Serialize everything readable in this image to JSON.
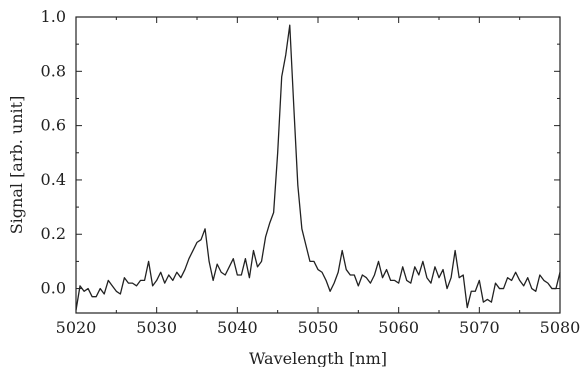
{
  "chart_data": {
    "type": "line",
    "title": "",
    "xlabel": "Wavelength [nm]",
    "ylabel": "Signal [arb. unit]",
    "xlim": [
      5020,
      5080
    ],
    "ylim": [
      -0.09,
      1.0
    ],
    "xticks": [
      5020,
      5030,
      5040,
      5050,
      5060,
      5070,
      5080
    ],
    "xtick_labels": [
      "5020",
      "5030",
      "5040",
      "5050",
      "5060",
      "5070",
      "5080"
    ],
    "yticks": [
      0.0,
      0.2,
      0.4,
      0.6,
      0.8,
      1.0
    ],
    "ytick_labels": [
      "0.0",
      "0.2",
      "0.4",
      "0.6",
      "0.8",
      "1.0"
    ],
    "grid": false,
    "legend": "none",
    "series": [
      {
        "color": "#222222",
        "x": [
          5020.0,
          5020.5,
          5021.0,
          5021.5,
          5022.0,
          5022.5,
          5023.0,
          5023.5,
          5024.0,
          5024.5,
          5025.0,
          5025.5,
          5026.0,
          5026.5,
          5027.0,
          5027.5,
          5028.0,
          5028.5,
          5029.0,
          5029.5,
          5030.0,
          5030.5,
          5031.0,
          5031.5,
          5032.0,
          5032.5,
          5033.0,
          5033.5,
          5034.0,
          5034.5,
          5035.0,
          5035.5,
          5036.0,
          5036.5,
          5037.0,
          5037.5,
          5038.0,
          5038.5,
          5039.0,
          5039.5,
          5040.0,
          5040.5,
          5041.0,
          5041.5,
          5042.0,
          5042.5,
          5043.0,
          5043.5,
          5044.0,
          5044.5,
          5045.0,
          5045.5,
          5046.0,
          5046.5,
          5047.0,
          5047.5,
          5048.0,
          5048.5,
          5049.0,
          5049.5,
          5050.0,
          5050.5,
          5051.0,
          5051.5,
          5052.0,
          5052.5,
          5053.0,
          5053.5,
          5054.0,
          5054.5,
          5055.0,
          5055.5,
          5056.0,
          5056.5,
          5057.0,
          5057.5,
          5058.0,
          5058.5,
          5059.0,
          5059.5,
          5060.0,
          5060.5,
          5061.0,
          5061.5,
          5062.0,
          5062.5,
          5063.0,
          5063.5,
          5064.0,
          5064.5,
          5065.0,
          5065.5,
          5066.0,
          5066.5,
          5067.0,
          5067.5,
          5068.0,
          5068.5,
          5069.0,
          5069.5,
          5070.0,
          5070.5,
          5071.0,
          5071.5,
          5072.0,
          5072.5,
          5073.0,
          5073.5,
          5074.0,
          5074.5,
          5075.0,
          5075.5,
          5076.0,
          5076.5,
          5077.0,
          5077.5,
          5078.0,
          5078.5,
          5079.0,
          5079.5,
          5080.0
        ],
        "y": [
          -0.08,
          0.01,
          -0.01,
          0.0,
          -0.03,
          -0.03,
          0.0,
          -0.02,
          0.03,
          0.01,
          -0.01,
          -0.02,
          0.04,
          0.02,
          0.02,
          0.01,
          0.03,
          0.03,
          0.1,
          0.01,
          0.03,
          0.06,
          0.02,
          0.05,
          0.03,
          0.06,
          0.04,
          0.07,
          0.11,
          0.14,
          0.17,
          0.18,
          0.22,
          0.1,
          0.03,
          0.09,
          0.06,
          0.05,
          0.08,
          0.11,
          0.05,
          0.05,
          0.11,
          0.04,
          0.14,
          0.08,
          0.1,
          0.19,
          0.24,
          0.28,
          0.5,
          0.78,
          0.86,
          0.97,
          0.67,
          0.38,
          0.22,
          0.16,
          0.1,
          0.1,
          0.07,
          0.06,
          0.03,
          -0.01,
          0.02,
          0.06,
          0.14,
          0.07,
          0.05,
          0.05,
          0.01,
          0.05,
          0.04,
          0.02,
          0.05,
          0.1,
          0.04,
          0.07,
          0.03,
          0.03,
          0.02,
          0.08,
          0.03,
          0.02,
          0.08,
          0.05,
          0.1,
          0.04,
          0.02,
          0.08,
          0.04,
          0.07,
          0.0,
          0.04,
          0.14,
          0.04,
          0.05,
          -0.07,
          -0.01,
          -0.01,
          0.03,
          -0.05,
          -0.04,
          -0.05,
          0.02,
          0.0,
          0.0,
          0.04,
          0.03,
          0.06,
          0.03,
          0.01,
          0.04,
          0.0,
          -0.01,
          0.05,
          0.03,
          0.02,
          0.0,
          0.0,
          0.06
        ]
      }
    ]
  }
}
